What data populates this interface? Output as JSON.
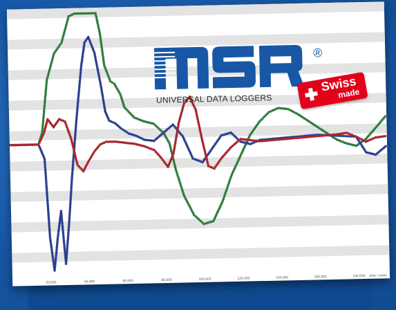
{
  "brand": {
    "name": "MSR",
    "registered_mark": "®",
    "tagline": "UNIVERSAL DATA LOGGERS",
    "badge_line1": "Swiss",
    "badge_line2": "made",
    "colors": {
      "logo": "#1757a5",
      "badge": "#e2001a",
      "background": "#1757a5"
    }
  },
  "chart_data": {
    "type": "line",
    "xlabel": "time / msec",
    "x_ticks": [
      "20,000",
      "40,000",
      "60,000",
      "80,000",
      "100,000",
      "120,000",
      "140,000",
      "160,000",
      "180,000"
    ],
    "xlim": [
      0,
      196000
    ],
    "ylim": [
      -1,
      1
    ],
    "grid": "horizontal bands",
    "legend": "none",
    "series": [
      {
        "color": "#2e7d3e",
        "x": [
          0,
          15000,
          17000,
          20000,
          24000,
          28000,
          32000,
          35000,
          38000,
          42000,
          46000,
          48000,
          50000,
          53000,
          55000,
          58000,
          60000,
          65000,
          70000,
          75000,
          80000,
          83000,
          86000,
          90000,
          95000,
          100000,
          105000,
          110000,
          115000,
          120000,
          125000,
          130000,
          135000,
          140000,
          145000,
          150000,
          155000,
          160000,
          165000,
          170000,
          175000,
          180000,
          185000,
          190000,
          196000
        ],
        "y": [
          0.01,
          0.01,
          0.1,
          0.5,
          0.7,
          0.78,
          0.98,
          1.0,
          1.0,
          1.0,
          1.0,
          0.85,
          0.6,
          0.48,
          0.46,
          0.38,
          0.28,
          0.2,
          0.17,
          0.15,
          0.08,
          0.0,
          -0.2,
          -0.4,
          -0.55,
          -0.62,
          -0.6,
          -0.45,
          -0.25,
          -0.1,
          0.05,
          0.15,
          0.22,
          0.25,
          0.24,
          0.2,
          0.15,
          0.1,
          0.05,
          0.0,
          -0.03,
          -0.05,
          0.0,
          0.08,
          0.18
        ]
      },
      {
        "color": "#2a3f8f",
        "x": [
          0,
          15000,
          18000,
          20000,
          22000,
          24000,
          26000,
          28000,
          30000,
          32000,
          35000,
          38000,
          40000,
          42000,
          45000,
          48000,
          50000,
          52000,
          55000,
          58000,
          62000,
          66000,
          70000,
          75000,
          80000,
          85000,
          90000,
          95000,
          100000,
          105000,
          110000,
          115000,
          120000,
          125000,
          130000,
          140000,
          150000,
          160000,
          170000,
          180000,
          185000,
          190000,
          196000
        ],
        "y": [
          0.01,
          0.01,
          -0.1,
          -0.7,
          -0.95,
          -0.7,
          -0.5,
          -0.9,
          -0.6,
          -0.25,
          0.2,
          0.6,
          0.78,
          0.82,
          0.7,
          0.45,
          0.25,
          0.18,
          0.16,
          0.12,
          0.08,
          0.06,
          0.03,
          0.02,
          0.08,
          0.14,
          0.05,
          -0.12,
          -0.15,
          -0.05,
          0.05,
          0.07,
          0.0,
          -0.02,
          0.01,
          0.02,
          0.03,
          0.04,
          0.03,
          0.02,
          -0.1,
          -0.12,
          -0.05
        ]
      },
      {
        "color": "#a8262d",
        "x": [
          0,
          15000,
          18000,
          20000,
          23000,
          26000,
          29000,
          32000,
          35000,
          38000,
          41000,
          44000,
          47000,
          50000,
          55000,
          60000,
          65000,
          70000,
          75000,
          78000,
          82000,
          85000,
          88000,
          91000,
          94000,
          97000,
          100000,
          103000,
          106000,
          110000,
          115000,
          120000,
          125000,
          130000,
          140000,
          150000,
          160000,
          170000,
          175000,
          180000,
          185000,
          190000,
          196000
        ],
        "y": [
          0.01,
          0.01,
          0.1,
          0.2,
          0.14,
          0.2,
          0.18,
          0.05,
          -0.15,
          -0.2,
          -0.12,
          -0.05,
          0.0,
          0.02,
          0.02,
          0.01,
          0.0,
          -0.02,
          -0.05,
          -0.1,
          -0.18,
          -0.08,
          0.15,
          0.3,
          0.35,
          0.25,
          0.02,
          -0.18,
          -0.2,
          -0.12,
          -0.04,
          0.02,
          0.01,
          0.0,
          0.01,
          0.02,
          0.03,
          0.04,
          0.05,
          0.02,
          -0.02,
          0.01,
          0.02
        ]
      }
    ]
  }
}
